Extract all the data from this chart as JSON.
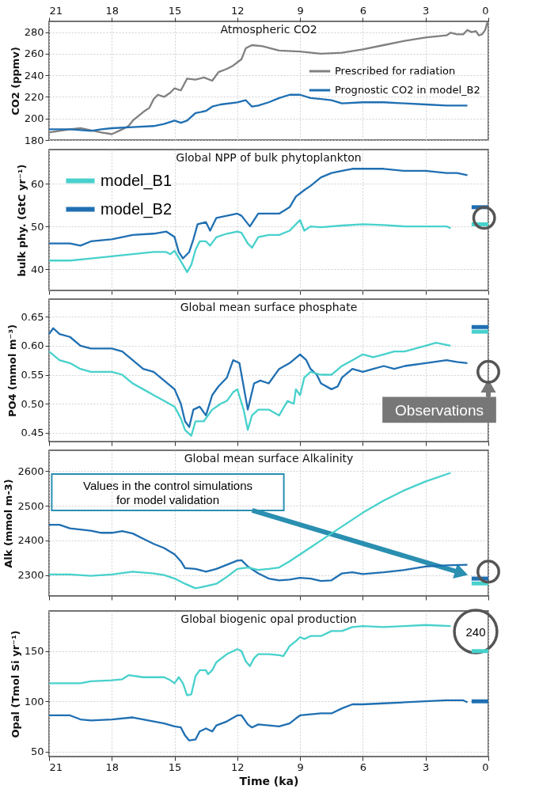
{
  "chart_data": [
    {
      "type": "line",
      "title": "Atmospheric CO2",
      "ylabel": "CO2 (ppmv)",
      "xlim": [
        21,
        0
      ],
      "xticks": [
        21,
        18,
        15,
        12,
        9,
        6,
        3,
        0
      ],
      "ylim": [
        180,
        290
      ],
      "yticks": [
        180,
        200,
        220,
        240,
        260,
        280
      ],
      "grid": true,
      "legend": "right",
      "series": [
        {
          "name": "Prescribed for radiation",
          "color": "#808080",
          "x": [
            21,
            20,
            19.5,
            19,
            18.5,
            18,
            17.5,
            17.2,
            17,
            16.5,
            16.2,
            16,
            15.8,
            15.5,
            15.2,
            15,
            14.7,
            14.4,
            14,
            13.6,
            13.2,
            12.9,
            12.5,
            12.2,
            11.8,
            11.6,
            11.3,
            10.8,
            10,
            9,
            8,
            7,
            6,
            5,
            4,
            3,
            2,
            1.8,
            1.5,
            1.2,
            1,
            0.8,
            0.6,
            0.45,
            0.3,
            0.15,
            0.05
          ],
          "values": [
            187,
            190,
            191,
            189,
            187,
            185.5,
            190,
            193,
            198,
            206,
            210,
            218,
            222,
            220,
            224,
            228,
            226,
            237,
            236,
            238,
            235,
            243,
            246,
            249,
            255,
            265,
            268,
            267,
            263,
            262,
            260,
            261,
            264,
            268,
            272,
            275,
            277,
            279.5,
            278,
            278,
            282,
            280,
            281,
            277,
            278,
            282,
            289
          ]
        },
        {
          "name": "Prognostic CO2 in model_B2",
          "color": "#1f6fb2",
          "x": [
            21,
            20,
            19,
            18.5,
            18,
            17,
            16,
            15.5,
            15,
            14.7,
            14.4,
            14,
            13.5,
            13.2,
            12.8,
            12,
            11.6,
            11.3,
            11,
            10.5,
            10,
            9.5,
            9,
            8.5,
            8,
            7.5,
            7,
            6,
            5,
            4,
            3,
            2,
            1
          ],
          "values": [
            190,
            190,
            188.5,
            190,
            191,
            192,
            193,
            195,
            198,
            196,
            198,
            205,
            207,
            211,
            213,
            215,
            217,
            211,
            212,
            215,
            219,
            222,
            222,
            219,
            218,
            217,
            214,
            215,
            215,
            214,
            213,
            212,
            212
          ]
        }
      ]
    },
    {
      "type": "line",
      "title": "Global NPP of bulk phytoplankton",
      "ylabel": "bulk phy. (GtC yr⁻¹)",
      "xlim": [
        21,
        0
      ],
      "xticks": [
        21,
        18,
        15,
        12,
        9,
        6,
        3,
        0
      ],
      "ylim": [
        35,
        68
      ],
      "yticks": [
        40,
        50,
        60
      ],
      "grid": true,
      "legend": "top left",
      "tick_labels": "y",
      "series": [
        {
          "name": "model_B1",
          "color": "#48d1cc",
          "x": [
            21,
            20,
            19,
            18,
            17,
            16,
            15.4,
            15.2,
            15,
            14.6,
            14.4,
            14.2,
            14,
            13.8,
            13.5,
            13.3,
            13,
            12.5,
            12,
            11.8,
            11.5,
            11.3,
            11,
            10.5,
            10,
            9.5,
            9.2,
            9,
            8.8,
            8.5,
            8,
            7,
            6,
            5,
            4,
            3,
            2,
            1.8
          ],
          "values": [
            42,
            42,
            42.5,
            43,
            43.5,
            44,
            44,
            43.5,
            44.3,
            41,
            39.3,
            41,
            44.5,
            46.5,
            46.5,
            45.5,
            47.5,
            48.3,
            48.8,
            48.5,
            46,
            45,
            47.5,
            48,
            48,
            49,
            50.5,
            51.5,
            49,
            50,
            49.8,
            50.2,
            50.5,
            50.3,
            50,
            50,
            50,
            49.6
          ]
        },
        {
          "name": "model_B2",
          "color": "#1f6fb2",
          "x": [
            21,
            20,
            19.5,
            19,
            18,
            17,
            16,
            15.4,
            15,
            14.8,
            14.6,
            14.3,
            14.1,
            13.9,
            13.5,
            13.3,
            13,
            12.5,
            12,
            11.8,
            11.4,
            11,
            10.5,
            10,
            9.5,
            9.2,
            8.8,
            8.5,
            8,
            7.5,
            7,
            6.5,
            6,
            5,
            4,
            3,
            2,
            1.5,
            1
          ],
          "values": [
            46,
            46,
            45.5,
            46.5,
            47,
            48,
            48.3,
            48.8,
            47.5,
            44,
            42.5,
            44,
            47,
            50.5,
            51,
            49,
            52,
            52.5,
            53,
            52.5,
            50,
            53,
            53,
            53,
            54.5,
            57,
            58.5,
            59.5,
            61.5,
            62.5,
            63,
            63.5,
            63.5,
            63.5,
            63,
            63,
            62.5,
            62.5,
            62
          ]
        },
        {
          "type": "line",
          "color": "#1f6fb2",
          "x": [
            0.8,
            0
          ],
          "values": [
            54.5,
            54.5
          ]
        },
        {
          "type": "line",
          "color": "#48d1cc",
          "x": [
            0.8,
            0
          ],
          "values": [
            50.5,
            50.5
          ]
        },
        {
          "type": "scatter",
          "marker": "circle",
          "color": "#555555",
          "x": [
            0.2
          ],
          "values": [
            52
          ]
        }
      ]
    },
    {
      "type": "line",
      "title": "Global mean surface phosphate",
      "ylabel": "PO4 (mmol m⁻³)",
      "xlim": [
        21,
        0
      ],
      "xticks": [
        21,
        18,
        15,
        12,
        9,
        6,
        3,
        0
      ],
      "ylim": [
        0.435,
        0.68
      ],
      "yticks": [
        0.45,
        {
          "value": 0.5,
          "label": "0.50"
        },
        0.55,
        {
          "value": 0.6,
          "label": "0.60"
        },
        0.65
      ],
      "grid": true,
      "tick_labels": "y",
      "annotations": [
        {
          "text": "Observations",
          "x": 0,
          "y": 0.555
        }
      ],
      "series": [
        {
          "color": "#1f6fb2",
          "x": [
            21,
            20.8,
            20.5,
            20,
            19.5,
            19,
            18.5,
            18,
            17.5,
            17,
            16.5,
            16,
            15.5,
            15,
            14.7,
            14.5,
            14.3,
            14.1,
            13.8,
            13.5,
            13.2,
            12.9,
            12.5,
            12.2,
            11.9,
            11.6,
            11.5,
            11.2,
            10.9,
            10.5,
            10,
            9.5,
            9,
            8.7,
            8.5,
            8.2,
            8,
            7.5,
            7.2,
            7,
            6.5,
            6,
            5.5,
            5,
            4.5,
            4,
            3,
            2,
            1.5,
            1
          ],
          "values": [
            0.62,
            0.63,
            0.62,
            0.615,
            0.6,
            0.595,
            0.595,
            0.595,
            0.59,
            0.575,
            0.56,
            0.555,
            0.54,
            0.525,
            0.5,
            0.47,
            0.46,
            0.49,
            0.495,
            0.48,
            0.515,
            0.53,
            0.545,
            0.575,
            0.57,
            0.51,
            0.49,
            0.535,
            0.54,
            0.535,
            0.56,
            0.57,
            0.585,
            0.575,
            0.56,
            0.55,
            0.535,
            0.525,
            0.53,
            0.545,
            0.56,
            0.555,
            0.56,
            0.565,
            0.56,
            0.565,
            0.57,
            0.575,
            0.572,
            0.57
          ]
        },
        {
          "color": "#48d1cc",
          "x": [
            21,
            20.5,
            20,
            19.5,
            19,
            18,
            17.5,
            17,
            16.5,
            16,
            15.5,
            15,
            14.7,
            14.5,
            14.2,
            14,
            13.6,
            13.2,
            12.8,
            12.5,
            12.2,
            12,
            11.7,
            11.5,
            11.3,
            11,
            10.5,
            10,
            9.6,
            9.3,
            9.2,
            9,
            8.8,
            8.5,
            8,
            7.5,
            7,
            6.5,
            6,
            5.5,
            5,
            4.5,
            4,
            3,
            2.5,
            1.8
          ],
          "values": [
            0.59,
            0.575,
            0.57,
            0.56,
            0.555,
            0.555,
            0.55,
            0.535,
            0.525,
            0.515,
            0.505,
            0.495,
            0.475,
            0.455,
            0.445,
            0.47,
            0.47,
            0.49,
            0.5,
            0.505,
            0.52,
            0.525,
            0.49,
            0.455,
            0.48,
            0.49,
            0.49,
            0.48,
            0.505,
            0.5,
            0.525,
            0.515,
            0.545,
            0.555,
            0.55,
            0.55,
            0.565,
            0.575,
            0.585,
            0.58,
            0.585,
            0.59,
            0.59,
            0.6,
            0.605,
            0.6
          ]
        },
        {
          "type": "line",
          "color": "#1f6fb2",
          "x": [
            0.8,
            0
          ],
          "values": [
            0.632,
            0.632
          ]
        },
        {
          "type": "line",
          "color": "#48d1cc",
          "x": [
            0.8,
            0
          ],
          "values": [
            0.624,
            0.624
          ]
        },
        {
          "type": "scatter",
          "marker": "circle",
          "color": "#555555",
          "x": [
            0
          ],
          "values": [
            0.555
          ]
        }
      ]
    },
    {
      "type": "line",
      "title": "Global mean surface Alkalinity",
      "ylabel": "Alk (mmol m-3)",
      "xlim": [
        21,
        0
      ],
      "xticks": [
        21,
        18,
        15,
        12,
        9,
        6,
        3,
        0
      ],
      "ylim": [
        2240,
        2660
      ],
      "yticks": [
        2300,
        2400,
        2500,
        2600
      ],
      "grid": true,
      "tick_labels": "y",
      "annotations": [
        "Values in the control simulations\nfor model validation"
      ],
      "series": [
        {
          "color": "#1f6fb2",
          "x": [
            21,
            20.5,
            20,
            19,
            18.5,
            18,
            17.5,
            17,
            16.5,
            16,
            15.5,
            15,
            14.7,
            14.5,
            14,
            13.5,
            13,
            12.5,
            12,
            11.8,
            11.5,
            11,
            10.5,
            10,
            9.5,
            9,
            8.5,
            8,
            7.5,
            7,
            6.5,
            6,
            5,
            4,
            3,
            2,
            1
          ],
          "values": [
            2445,
            2445,
            2435,
            2428,
            2422,
            2422,
            2427,
            2420,
            2405,
            2390,
            2378,
            2360,
            2340,
            2320,
            2318,
            2310,
            2318,
            2330,
            2342,
            2343,
            2325,
            2305,
            2290,
            2285,
            2287,
            2292,
            2290,
            2283,
            2285,
            2305,
            2308,
            2303,
            2308,
            2315,
            2325,
            2328,
            2330
          ]
        },
        {
          "color": "#48d1cc",
          "x": [
            21,
            20,
            19,
            18,
            17,
            16,
            15.5,
            15,
            14.5,
            14,
            13.5,
            13,
            12.5,
            12,
            11.5,
            11,
            10.5,
            10,
            9.5,
            9,
            8.5,
            8,
            7,
            6,
            5,
            4,
            3,
            1.8
          ],
          "values": [
            2302,
            2302,
            2298,
            2302,
            2310,
            2305,
            2300,
            2290,
            2275,
            2262,
            2268,
            2275,
            2295,
            2318,
            2322,
            2315,
            2318,
            2322,
            2340,
            2360,
            2380,
            2400,
            2440,
            2480,
            2515,
            2545,
            2570,
            2595
          ]
        },
        {
          "type": "line",
          "color": "#1f6fb2",
          "x": [
            0.8,
            0
          ],
          "values": [
            2290,
            2290
          ]
        },
        {
          "type": "line",
          "color": "#48d1cc",
          "x": [
            0.8,
            0
          ],
          "values": [
            2276,
            2276
          ]
        },
        {
          "type": "scatter",
          "marker": "circle",
          "color": "#555555",
          "x": [
            0
          ],
          "values": [
            2310
          ]
        }
      ]
    },
    {
      "type": "line",
      "title": "Global biogenic opal production",
      "xlabel": "Time (ka)",
      "ylabel": "Opal (Tmol Si yr⁻¹)",
      "xlim": [
        21,
        0
      ],
      "xticks": [
        21,
        18,
        15,
        12,
        9,
        6,
        3,
        0
      ],
      "ylim": [
        45,
        190
      ],
      "yticks": [
        50,
        100,
        150
      ],
      "grid": true,
      "annotations": [
        "240"
      ],
      "series": [
        {
          "color": "#48d1cc",
          "x": [
            21,
            20,
            19.5,
            19,
            18,
            17.5,
            17.2,
            16.5,
            16,
            15.5,
            15.2,
            15,
            14.8,
            14.6,
            14.4,
            14.2,
            14,
            13.8,
            13.5,
            13.4,
            13.2,
            13,
            12.5,
            12.2,
            12,
            11.8,
            11.6,
            11.4,
            11.2,
            11,
            10.5,
            10,
            9.8,
            9.5,
            9.2,
            9,
            8.8,
            8.5,
            8,
            7.5,
            7,
            6.5,
            6,
            5,
            4,
            3,
            1.8
          ],
          "values": [
            118,
            118,
            118,
            120,
            121,
            122,
            126,
            124,
            124,
            124,
            121,
            118,
            124,
            118,
            106,
            107,
            125,
            131,
            131,
            127,
            131,
            139,
            147,
            150,
            152,
            150,
            140,
            135,
            143,
            147,
            147,
            146,
            145,
            155,
            160,
            164,
            162,
            165,
            165,
            170,
            170,
            174,
            175,
            174,
            175,
            176,
            175
          ]
        },
        {
          "color": "#1f6fb2",
          "x": [
            21,
            20,
            19.5,
            19,
            18,
            17,
            16.5,
            16,
            15.5,
            15,
            14.7,
            14.5,
            14.3,
            14,
            13.8,
            13.5,
            13.2,
            13,
            12.5,
            12,
            11.8,
            11.5,
            11.3,
            11,
            10.5,
            10,
            9.5,
            9.2,
            9,
            8.5,
            8,
            7.5,
            7,
            6.5,
            6,
            5,
            4,
            3,
            2,
            1.2,
            1
          ],
          "values": [
            86,
            86,
            82,
            81,
            82,
            84,
            82,
            80,
            78,
            75,
            74,
            66,
            61,
            62,
            70,
            73,
            70,
            76,
            80,
            86,
            86,
            77,
            74,
            77,
            76,
            75,
            78,
            83,
            86,
            87,
            88,
            88,
            93,
            97,
            97,
            98,
            99,
            100,
            101,
            101,
            99
          ]
        },
        {
          "type": "line",
          "color": "#48d1cc",
          "x": [
            0.8,
            0
          ],
          "values": [
            150,
            150
          ]
        },
        {
          "type": "line",
          "color": "#1f6fb2",
          "x": [
            0.8,
            0
          ],
          "values": [
            100,
            100
          ]
        }
      ]
    }
  ]
}
